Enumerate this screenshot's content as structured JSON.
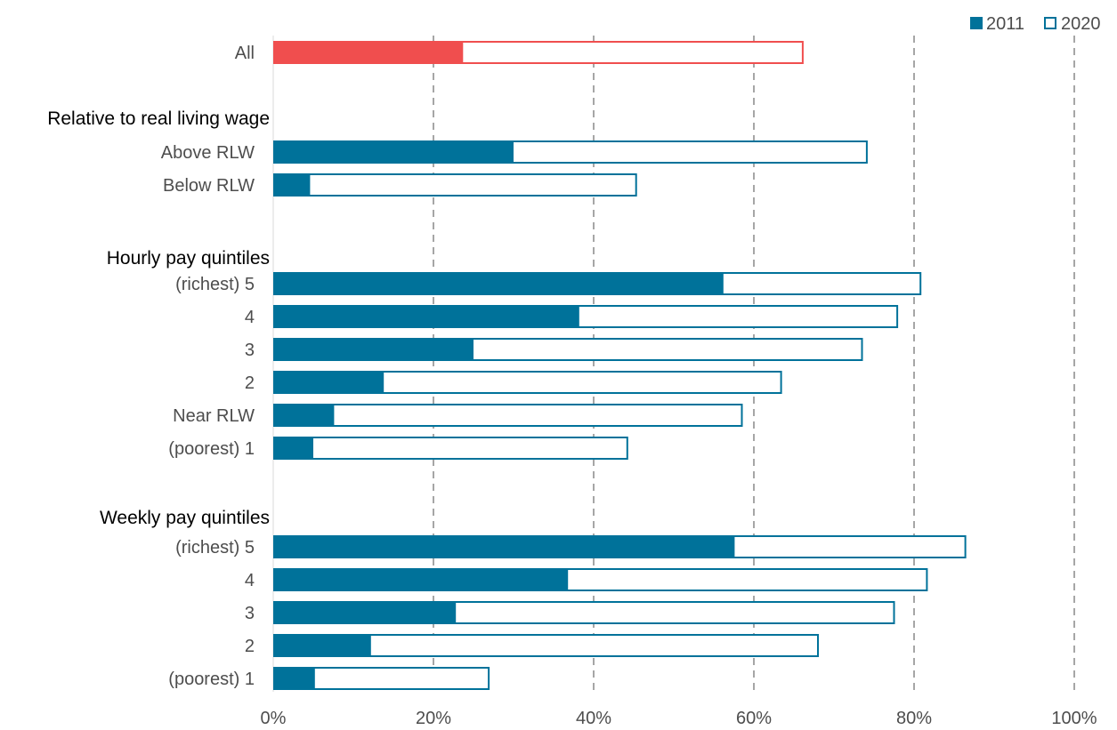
{
  "chart_data": {
    "type": "bar",
    "orientation": "horizontal",
    "legend_position": "top-right",
    "grid": "vertical dashed",
    "xlim": [
      0,
      100
    ],
    "x_ticks": [
      "0%",
      "20%",
      "40%",
      "60%",
      "80%",
      "100%"
    ],
    "legend": [
      {
        "name": "2011",
        "style": "filled",
        "color": "#00729a"
      },
      {
        "name": "2020",
        "style": "outline",
        "color": "#00729a"
      }
    ],
    "highlight_color": "#f04e4e",
    "rows": [
      {
        "kind": "bar",
        "label": "All",
        "v2011": 23.7,
        "v2020": 66.1,
        "highlight": true
      },
      {
        "kind": "group",
        "label": "Relative to real living wage"
      },
      {
        "kind": "bar",
        "label": "Above RLW",
        "v2011": 30.0,
        "v2020": 74.1
      },
      {
        "kind": "bar",
        "label": "Below RLW",
        "v2011": 4.6,
        "v2020": 45.3
      },
      {
        "kind": "group",
        "label": "Hourly pay quintiles"
      },
      {
        "kind": "bar",
        "label": "(richest) 5",
        "v2011": 56.2,
        "v2020": 80.8
      },
      {
        "kind": "bar",
        "label": "4",
        "v2011": 38.2,
        "v2020": 77.9
      },
      {
        "kind": "bar",
        "label": "3",
        "v2011": 25.0,
        "v2020": 73.5
      },
      {
        "kind": "bar",
        "label": "2",
        "v2011": 13.8,
        "v2020": 63.4
      },
      {
        "kind": "bar",
        "label": "Near RLW",
        "v2011": 7.6,
        "v2020": 58.5
      },
      {
        "kind": "bar",
        "label": "(poorest) 1",
        "v2011": 5.0,
        "v2020": 44.2
      },
      {
        "kind": "group",
        "label": "Weekly pay quintiles"
      },
      {
        "kind": "bar",
        "label": "(richest) 5",
        "v2011": 57.6,
        "v2020": 86.4
      },
      {
        "kind": "bar",
        "label": "4",
        "v2011": 36.8,
        "v2020": 81.6
      },
      {
        "kind": "bar",
        "label": "3",
        "v2011": 22.8,
        "v2020": 77.5
      },
      {
        "kind": "bar",
        "label": "2",
        "v2011": 12.2,
        "v2020": 68.0
      },
      {
        "kind": "bar",
        "label": "(poorest) 1",
        "v2011": 5.2,
        "v2020": 26.9
      }
    ]
  }
}
